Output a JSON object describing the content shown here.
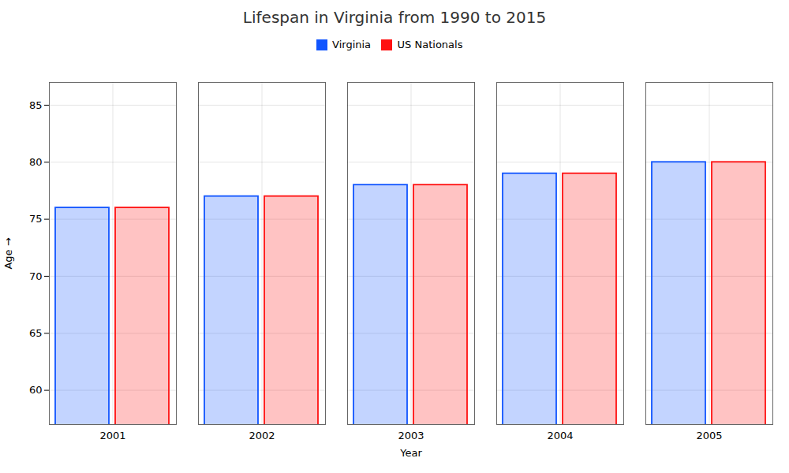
{
  "chart_data": {
    "type": "bar",
    "title": "Lifespan in Virginia from 1990 to 2015",
    "xlabel": "Year",
    "ylabel": "Age",
    "categories": [
      "2001",
      "2002",
      "2003",
      "2004",
      "2005"
    ],
    "series": [
      {
        "name": "Virginia",
        "color": "#1155ff",
        "values": [
          76,
          77,
          78,
          79,
          80
        ]
      },
      {
        "name": "US Nationals",
        "color": "#ff1111",
        "values": [
          76,
          77,
          78,
          79,
          80
        ]
      }
    ],
    "ylim": [
      57,
      87
    ],
    "yticks": [
      60,
      65,
      70,
      75,
      80,
      85
    ],
    "grid": true,
    "legend": "top"
  }
}
